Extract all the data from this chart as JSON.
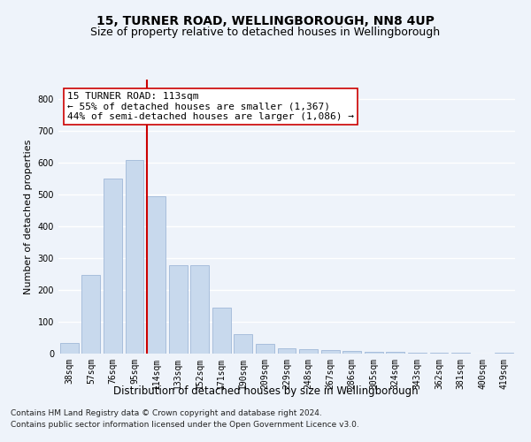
{
  "title1": "15, TURNER ROAD, WELLINGBOROUGH, NN8 4UP",
  "title2": "Size of property relative to detached houses in Wellingborough",
  "xlabel": "Distribution of detached houses by size in Wellingborough",
  "ylabel": "Number of detached properties",
  "categories": [
    "38sqm",
    "57sqm",
    "76sqm",
    "95sqm",
    "114sqm",
    "133sqm",
    "152sqm",
    "171sqm",
    "190sqm",
    "209sqm",
    "229sqm",
    "248sqm",
    "267sqm",
    "286sqm",
    "305sqm",
    "324sqm",
    "343sqm",
    "362sqm",
    "381sqm",
    "400sqm",
    "419sqm"
  ],
  "values": [
    33,
    248,
    548,
    607,
    495,
    277,
    277,
    145,
    60,
    30,
    18,
    15,
    10,
    8,
    5,
    5,
    3,
    2,
    2,
    1,
    2
  ],
  "bar_color": "#c8d9ed",
  "bar_edge_color": "#a0b8d8",
  "vline_bar_index": 4,
  "vline_color": "#cc0000",
  "annotation_text": "15 TURNER ROAD: 113sqm\n← 55% of detached houses are smaller (1,367)\n44% of semi-detached houses are larger (1,086) →",
  "annotation_box_color": "#ffffff",
  "annotation_box_edge": "#cc0000",
  "ylim": [
    0,
    860
  ],
  "yticks": [
    0,
    100,
    200,
    300,
    400,
    500,
    600,
    700,
    800
  ],
  "footnote1": "Contains HM Land Registry data © Crown copyright and database right 2024.",
  "footnote2": "Contains public sector information licensed under the Open Government Licence v3.0.",
  "bg_color": "#eef3fa",
  "grid_color": "#ffffff",
  "title1_fontsize": 10,
  "title2_fontsize": 9,
  "xlabel_fontsize": 8.5,
  "ylabel_fontsize": 8,
  "tick_fontsize": 7,
  "annot_fontsize": 8,
  "footnote_fontsize": 6.5
}
